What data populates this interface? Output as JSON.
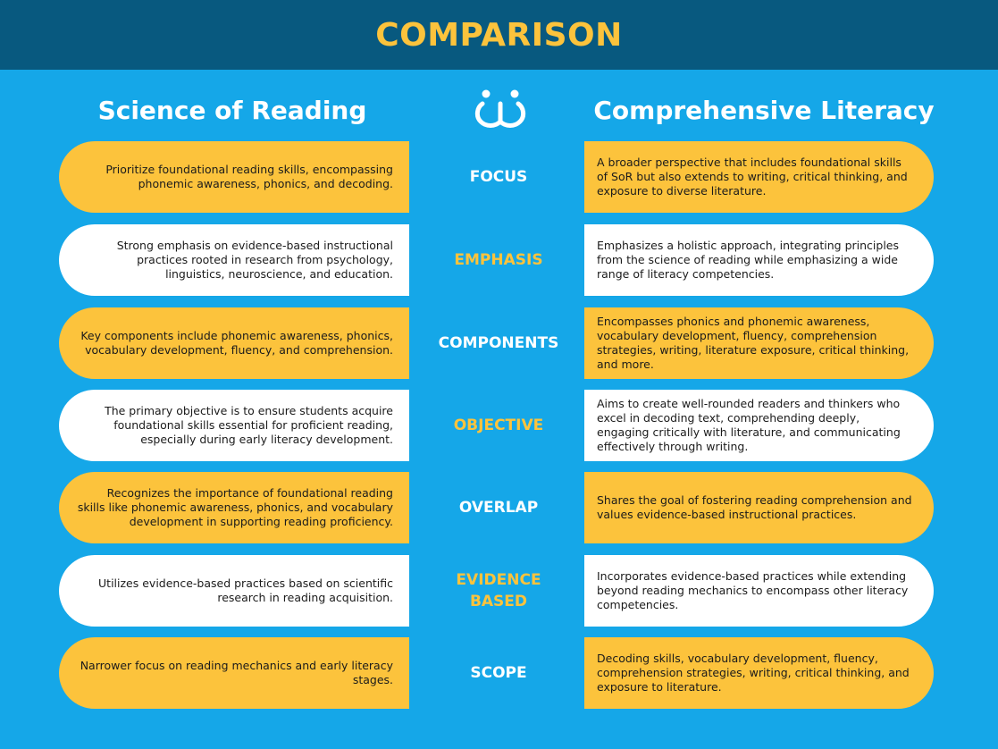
{
  "header": {
    "title": "COMPARISON"
  },
  "columns": {
    "left_title": "Science of Reading",
    "right_title": "Comprehensive Literacy"
  },
  "logo": {
    "icon": "people-logo-icon"
  },
  "colors": {
    "background": "#15a7e8",
    "header_bg": "#08597f",
    "accent_yellow": "#fcc33c",
    "white": "#ffffff"
  },
  "rows": [
    {
      "label": "FOCUS",
      "left": "Prioritize foundational reading skills, encompassing phonemic awareness, phonics, and decoding.",
      "right": "A broader perspective that includes foundational skills of SoR but also extends to writing, critical thinking, and exposure to diverse literature."
    },
    {
      "label": "EMPHASIS",
      "left": "Strong emphasis on evidence-based instructional practices rooted in research from psychology, linguistics, neuroscience, and education.",
      "right": "Emphasizes a holistic approach, integrating principles from the science of reading while emphasizing a wide range of literacy competencies."
    },
    {
      "label": "COMPONENTS",
      "left": "Key components include phonemic awareness, phonics, vocabulary development, fluency, and comprehension.",
      "right": "Encompasses phonics and phonemic awareness, vocabulary development, fluency, comprehension strategies, writing, literature exposure, critical thinking, and more."
    },
    {
      "label": "OBJECTIVE",
      "left": "The primary objective is to ensure students acquire foundational skills essential for proficient reading, especially during early literacy development.",
      "right": "Aims to create well-rounded readers and thinkers who excel in decoding text, comprehending deeply, engaging critically with literature, and communicating effectively through writing."
    },
    {
      "label": "OVERLAP",
      "left": "Recognizes the importance of foundational reading skills like phonemic awareness, phonics, and vocabulary development in supporting reading proficiency.",
      "right": "Shares the goal of fostering reading comprehension and values evidence-based instructional practices."
    },
    {
      "label_line1": "EVIDENCE",
      "label_line2": "BASED",
      "left": "Utilizes evidence-based practices based on scientific research in reading acquisition.",
      "right": "Incorporates evidence-based practices while extending beyond reading mechanics to encompass other literacy competencies."
    },
    {
      "label": "SCOPE",
      "left": "Narrower focus on reading mechanics and early literacy stages.",
      "right": "Decoding skills, vocabulary development, fluency, comprehension strategies, writing, critical thinking, and exposure to literature."
    }
  ]
}
